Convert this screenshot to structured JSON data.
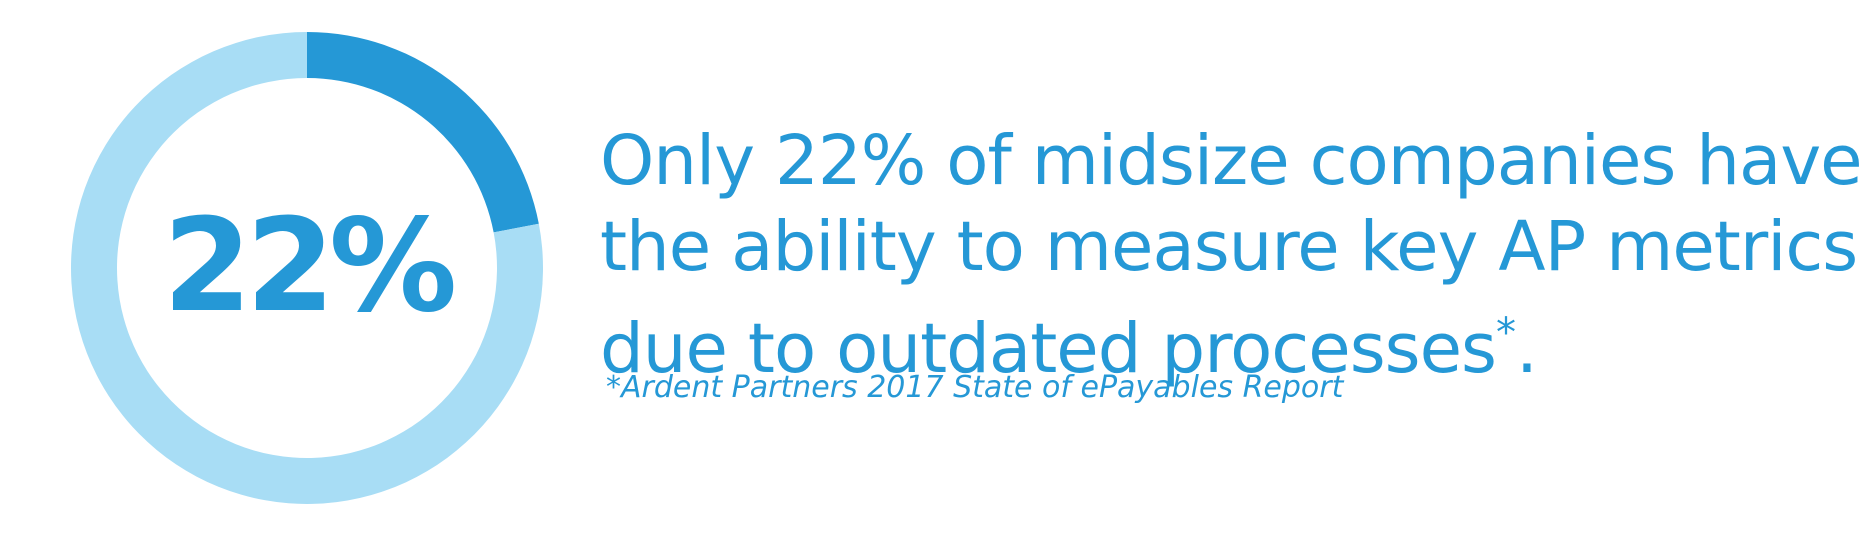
{
  "chart_data": {
    "type": "pie",
    "style": "donut",
    "slices": [
      {
        "value": 22,
        "color": "#2598d6"
      },
      {
        "value": 78,
        "color": "#a8ddf5"
      }
    ],
    "center_label": "22%",
    "start_angle": "top, clockwise"
  },
  "colors": {
    "accent": "#2598d6",
    "light": "#a8ddf5"
  },
  "statement": {
    "line1": "Only 22% of midsize companies have",
    "line2": "the ability to measure key AP metrics",
    "line3": "due to outdated processes",
    "footnote_mark": "*",
    "period": "."
  },
  "source": "*Ardent Partners 2017 State of ePayables Report"
}
